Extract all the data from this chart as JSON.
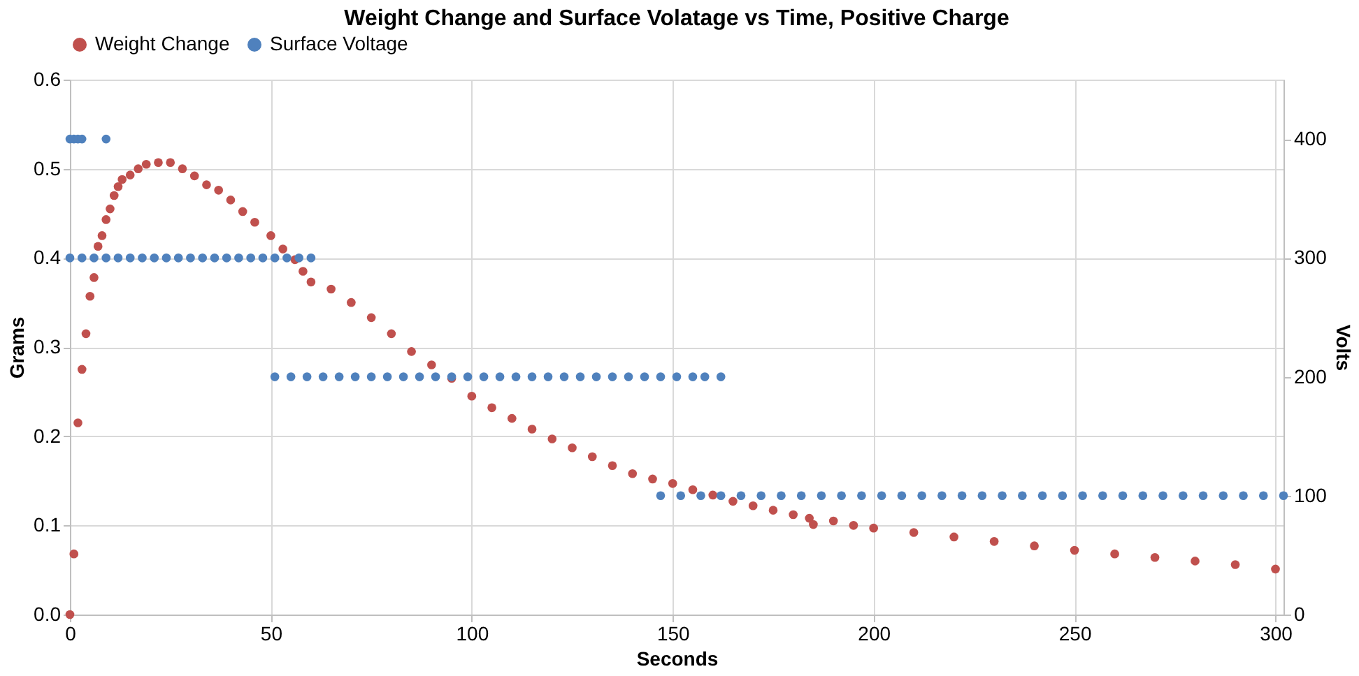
{
  "chart_data": {
    "type": "scatter",
    "title": "Weight Change and Surface Volatage vs Time, Positive Charge",
    "xlabel": "Seconds",
    "ylabel": "Grams",
    "y2label": "Volts",
    "xlim": [
      0,
      302
    ],
    "xticks": [
      0,
      50,
      100,
      150,
      200,
      250,
      300
    ],
    "ylim": [
      0,
      0.6
    ],
    "yticks": [
      {
        "value": 0,
        "label": "0.0"
      },
      0.1,
      0.2,
      0.3,
      0.4,
      0.5,
      0.6
    ],
    "y2lim": [
      0,
      450
    ],
    "y2ticks": [
      0,
      100,
      200,
      300,
      400
    ],
    "grid": true,
    "legend": "top",
    "marker": "circle",
    "series": [
      {
        "name": "Weight Change",
        "color": "#c0504d",
        "x": [
          0,
          1,
          2,
          3,
          4,
          5,
          6,
          7,
          8,
          9,
          10,
          11,
          12,
          13,
          15,
          17,
          19,
          22,
          25,
          28,
          31,
          34,
          37,
          40,
          43,
          46,
          50,
          53,
          56,
          58,
          60,
          65,
          70,
          75,
          80,
          85,
          90,
          95,
          100,
          105,
          110,
          115,
          120,
          125,
          130,
          135,
          140,
          145,
          150,
          155,
          160,
          165,
          170,
          175,
          180,
          184,
          185,
          190,
          195,
          200,
          210,
          220,
          230,
          240,
          250,
          260,
          270,
          280,
          290,
          300
        ],
        "values": [
          0,
          0.068,
          0.215,
          0.275,
          0.315,
          0.357,
          0.378,
          0.413,
          0.425,
          0.443,
          0.455,
          0.47,
          0.48,
          0.488,
          0.493,
          0.5,
          0.505,
          0.507,
          0.507,
          0.5,
          0.492,
          0.482,
          0.476,
          0.465,
          0.452,
          0.44,
          0.425,
          0.41,
          0.398,
          0.385,
          0.373,
          0.365,
          0.35,
          0.333,
          0.315,
          0.295,
          0.28,
          0.265,
          0.245,
          0.232,
          0.22,
          0.208,
          0.197,
          0.187,
          0.177,
          0.167,
          0.158,
          0.152,
          0.147,
          0.14,
          0.134,
          0.127,
          0.122,
          0.117,
          0.112,
          0.108,
          0.101,
          0.105,
          0.1,
          0.097,
          0.092,
          0.087,
          0.082,
          0.077,
          0.072,
          0.068,
          0.064,
          0.06,
          0.056,
          0.051
        ]
      },
      {
        "name": "Surface Voltage",
        "color": "#4f81bd",
        "axis": "y2",
        "x": [
          0,
          1,
          2,
          3,
          9,
          0,
          3,
          6,
          9,
          12,
          15,
          18,
          21,
          24,
          27,
          30,
          33,
          36,
          39,
          42,
          45,
          48,
          51,
          54,
          57,
          60,
          51,
          55,
          59,
          63,
          67,
          71,
          75,
          79,
          83,
          87,
          91,
          95,
          99,
          103,
          107,
          111,
          115,
          119,
          123,
          127,
          131,
          135,
          139,
          143,
          147,
          151,
          155,
          158,
          162,
          147,
          152,
          157,
          162,
          167,
          172,
          177,
          182,
          187,
          192,
          197,
          202,
          207,
          212,
          217,
          222,
          227,
          232,
          237,
          242,
          247,
          252,
          257,
          262,
          267,
          272,
          277,
          282,
          287,
          292,
          297,
          302
        ],
        "values": [
          400,
          400,
          400,
          400,
          400,
          300,
          300,
          300,
          300,
          300,
          300,
          300,
          300,
          300,
          300,
          300,
          300,
          300,
          300,
          300,
          300,
          300,
          300,
          300,
          300,
          300,
          200,
          200,
          200,
          200,
          200,
          200,
          200,
          200,
          200,
          200,
          200,
          200,
          200,
          200,
          200,
          200,
          200,
          200,
          200,
          200,
          200,
          200,
          200,
          200,
          200,
          200,
          200,
          200,
          200,
          100,
          100,
          100,
          100,
          100,
          100,
          100,
          100,
          100,
          100,
          100,
          100,
          100,
          100,
          100,
          100,
          100,
          100,
          100,
          100,
          100,
          100,
          100,
          100,
          100,
          100,
          100,
          100,
          100,
          100,
          100,
          100
        ]
      }
    ]
  }
}
